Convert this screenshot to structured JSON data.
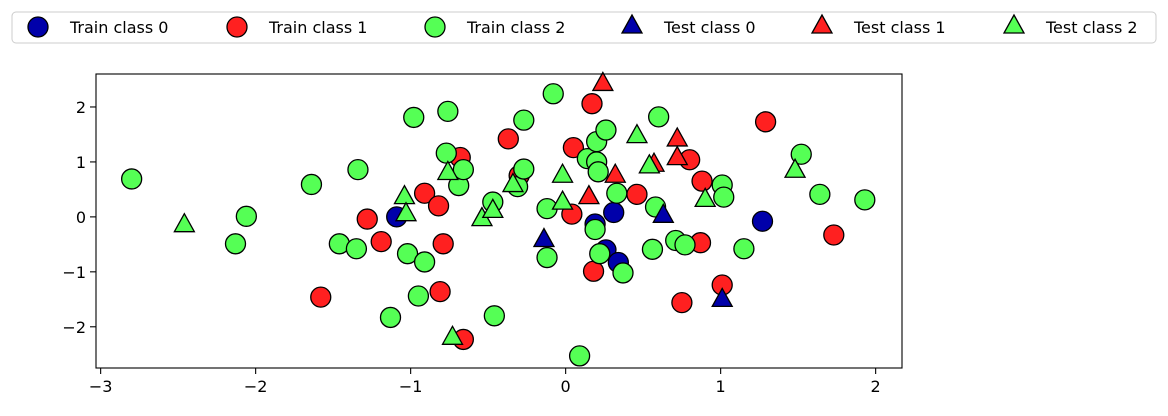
{
  "chart_data": {
    "type": "scatter",
    "xlim": [
      -3.03,
      2.17
    ],
    "ylim": [
      -2.75,
      2.6
    ],
    "x_ticks": [
      -3,
      -2,
      -1,
      0,
      1,
      2
    ],
    "y_ticks": [
      -2,
      -1,
      0,
      1,
      2
    ],
    "grid": false,
    "legend_position": "top",
    "series": [
      {
        "name": "Train class 0",
        "marker": "circle",
        "color": "#0000aa",
        "points": [
          [
            -1.09,
            0.0
          ],
          [
            0.19,
            -0.13
          ],
          [
            0.31,
            0.08
          ],
          [
            0.26,
            -0.6
          ],
          [
            0.34,
            -0.83
          ],
          [
            1.27,
            -0.08
          ]
        ]
      },
      {
        "name": "Train class 1",
        "marker": "circle",
        "color": "#ff2020",
        "points": [
          [
            -0.68,
            1.08
          ],
          [
            -0.91,
            0.43
          ],
          [
            -0.82,
            0.2
          ],
          [
            -1.28,
            -0.04
          ],
          [
            -1.19,
            -0.45
          ],
          [
            -0.79,
            -0.49
          ],
          [
            -0.81,
            -1.36
          ],
          [
            -0.66,
            -2.23
          ],
          [
            -1.58,
            -1.46
          ],
          [
            -0.37,
            1.42
          ],
          [
            -0.3,
            0.75
          ],
          [
            0.04,
            0.05
          ],
          [
            0.05,
            1.26
          ],
          [
            0.17,
            2.06
          ],
          [
            0.18,
            -0.99
          ],
          [
            0.46,
            0.41
          ],
          [
            0.75,
            -1.56
          ],
          [
            0.8,
            1.04
          ],
          [
            0.88,
            0.65
          ],
          [
            0.87,
            -0.47
          ],
          [
            1.01,
            -1.24
          ],
          [
            1.29,
            1.73
          ],
          [
            1.73,
            -0.33
          ]
        ]
      },
      {
        "name": "Train class 2",
        "marker": "circle",
        "color": "#55ff55",
        "points": [
          [
            -2.8,
            0.69
          ],
          [
            -2.06,
            0.01
          ],
          [
            -2.13,
            -0.49
          ],
          [
            -1.64,
            0.59
          ],
          [
            -1.46,
            -0.49
          ],
          [
            -1.35,
            -0.58
          ],
          [
            -1.34,
            0.86
          ],
          [
            -1.13,
            -1.83
          ],
          [
            -1.02,
            -0.67
          ],
          [
            -0.98,
            1.81
          ],
          [
            -0.95,
            -1.44
          ],
          [
            -0.91,
            -0.82
          ],
          [
            -0.77,
            1.16
          ],
          [
            -0.76,
            1.92
          ],
          [
            -0.69,
            0.57
          ],
          [
            -0.66,
            0.86
          ],
          [
            -0.47,
            0.27
          ],
          [
            -0.46,
            -1.8
          ],
          [
            -0.31,
            0.55
          ],
          [
            -0.27,
            0.87
          ],
          [
            -0.27,
            1.76
          ],
          [
            -0.12,
            0.15
          ],
          [
            -0.12,
            -0.74
          ],
          [
            -0.08,
            2.24
          ],
          [
            0.09,
            -2.53
          ],
          [
            0.14,
            1.06
          ],
          [
            0.19,
            -0.23
          ],
          [
            0.2,
            1.0
          ],
          [
            0.2,
            1.37
          ],
          [
            0.21,
            0.82
          ],
          [
            0.22,
            -0.67
          ],
          [
            0.26,
            1.58
          ],
          [
            0.33,
            0.43
          ],
          [
            0.37,
            -1.02
          ],
          [
            0.56,
            -0.59
          ],
          [
            0.58,
            0.18
          ],
          [
            0.6,
            1.82
          ],
          [
            0.71,
            -0.43
          ],
          [
            0.77,
            -0.51
          ],
          [
            1.01,
            0.58
          ],
          [
            1.02,
            0.36
          ],
          [
            1.15,
            -0.58
          ],
          [
            1.52,
            1.14
          ],
          [
            1.64,
            0.41
          ],
          [
            1.93,
            0.31
          ]
        ]
      },
      {
        "name": "Test class 0",
        "marker": "triangle",
        "color": "#0000aa",
        "points": [
          [
            -0.14,
            -0.43
          ],
          [
            0.63,
            0.01
          ],
          [
            1.01,
            -1.52
          ]
        ]
      },
      {
        "name": "Test class 1",
        "marker": "triangle",
        "color": "#ff2020",
        "points": [
          [
            0.24,
            2.41
          ],
          [
            0.15,
            0.35
          ],
          [
            0.32,
            0.74
          ],
          [
            0.57,
            0.94
          ],
          [
            0.72,
            1.4
          ],
          [
            0.72,
            1.06
          ]
        ]
      },
      {
        "name": "Test class 2",
        "marker": "triangle",
        "color": "#55ff55",
        "points": [
          [
            -2.46,
            -0.16
          ],
          [
            -1.04,
            0.35
          ],
          [
            -1.03,
            0.04
          ],
          [
            -0.76,
            0.79
          ],
          [
            -0.73,
            -2.21
          ],
          [
            -0.54,
            -0.05
          ],
          [
            -0.47,
            0.1
          ],
          [
            -0.34,
            0.57
          ],
          [
            -0.02,
            0.74
          ],
          [
            -0.02,
            0.25
          ],
          [
            0.46,
            1.46
          ],
          [
            0.54,
            0.91
          ],
          [
            0.9,
            0.3
          ],
          [
            1.48,
            0.83
          ]
        ]
      }
    ]
  }
}
